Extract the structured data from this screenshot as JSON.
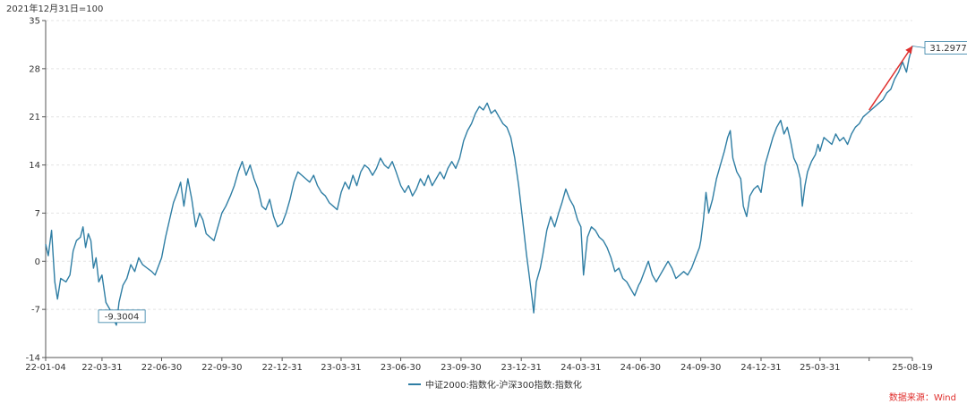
{
  "chart_data": {
    "type": "line",
    "unit_label": "2021年12月31日=100",
    "source": "数据来源：Wind",
    "legend": [
      "中证2000:指数化-沪深300指数:指数化"
    ],
    "series": [
      {
        "name": "中证2000:指数化-沪深300指数:指数化",
        "color": "#2f7ea4",
        "points": [
          [
            "22-01-04",
            2.5
          ],
          [
            "22-01-08",
            0.8
          ],
          [
            "22-01-13",
            4.5
          ],
          [
            "22-01-18",
            -3.0
          ],
          [
            "22-01-22",
            -5.5
          ],
          [
            "22-01-27",
            -2.5
          ],
          [
            "22-02-04",
            -3.0
          ],
          [
            "22-02-10",
            -2.0
          ],
          [
            "22-02-15",
            1.5
          ],
          [
            "22-02-20",
            3.0
          ],
          [
            "22-02-26",
            3.5
          ],
          [
            "22-03-02",
            5.0
          ],
          [
            "22-03-06",
            2.0
          ],
          [
            "22-03-10",
            4.0
          ],
          [
            "22-03-14",
            3.0
          ],
          [
            "22-03-18",
            -1.0
          ],
          [
            "22-03-22",
            0.5
          ],
          [
            "22-03-26",
            -3.0
          ],
          [
            "22-03-31",
            -2.0
          ],
          [
            "22-04-06",
            -6.0
          ],
          [
            "22-04-12",
            -7.0
          ],
          [
            "22-04-18",
            -8.5
          ],
          [
            "22-04-22",
            -9.3004
          ],
          [
            "22-04-26",
            -6.0
          ],
          [
            "22-05-02",
            -3.5
          ],
          [
            "22-05-08",
            -2.5
          ],
          [
            "22-05-14",
            -0.5
          ],
          [
            "22-05-20",
            -1.5
          ],
          [
            "22-05-26",
            0.5
          ],
          [
            "22-06-01",
            -0.5
          ],
          [
            "22-06-08",
            -1.0
          ],
          [
            "22-06-15",
            -1.5
          ],
          [
            "22-06-20",
            -2.0
          ],
          [
            "22-06-30",
            0.5
          ],
          [
            "22-07-06",
            3.5
          ],
          [
            "22-07-12",
            6.0
          ],
          [
            "22-07-18",
            8.5
          ],
          [
            "22-07-24",
            10.0
          ],
          [
            "22-07-29",
            11.5
          ],
          [
            "22-08-03",
            8.0
          ],
          [
            "22-08-09",
            12.0
          ],
          [
            "22-08-15",
            9.0
          ],
          [
            "22-08-21",
            5.0
          ],
          [
            "22-08-27",
            7.0
          ],
          [
            "22-09-01",
            6.0
          ],
          [
            "22-09-06",
            4.0
          ],
          [
            "22-09-12",
            3.5
          ],
          [
            "22-09-18",
            3.0
          ],
          [
            "22-09-24",
            5.0
          ],
          [
            "22-09-30",
            7.0
          ],
          [
            "22-10-06",
            8.0
          ],
          [
            "22-10-13",
            9.5
          ],
          [
            "22-10-19",
            11.0
          ],
          [
            "22-10-25",
            13.0
          ],
          [
            "22-10-31",
            14.5
          ],
          [
            "22-11-06",
            12.5
          ],
          [
            "22-11-12",
            14.0
          ],
          [
            "22-11-18",
            12.0
          ],
          [
            "22-11-24",
            10.5
          ],
          [
            "22-11-30",
            8.0
          ],
          [
            "22-12-06",
            7.5
          ],
          [
            "22-12-12",
            9.0
          ],
          [
            "22-12-18",
            6.5
          ],
          [
            "22-12-24",
            5.0
          ],
          [
            "22-12-31",
            5.5
          ],
          [
            "23-01-06",
            7.0
          ],
          [
            "23-01-12",
            9.0
          ],
          [
            "23-01-18",
            11.5
          ],
          [
            "23-01-24",
            13.0
          ],
          [
            "23-01-30",
            12.5
          ],
          [
            "23-02-05",
            12.0
          ],
          [
            "23-02-11",
            11.5
          ],
          [
            "23-02-17",
            12.5
          ],
          [
            "23-02-23",
            11.0
          ],
          [
            "23-03-01",
            10.0
          ],
          [
            "23-03-07",
            9.5
          ],
          [
            "23-03-13",
            8.5
          ],
          [
            "23-03-19",
            8.0
          ],
          [
            "23-03-25",
            7.5
          ],
          [
            "23-03-31",
            10.0
          ],
          [
            "23-04-06",
            11.5
          ],
          [
            "23-04-12",
            10.5
          ],
          [
            "23-04-18",
            12.5
          ],
          [
            "23-04-24",
            11.0
          ],
          [
            "23-04-30",
            13.0
          ],
          [
            "23-05-06",
            14.0
          ],
          [
            "23-05-12",
            13.5
          ],
          [
            "23-05-18",
            12.5
          ],
          [
            "23-05-24",
            13.5
          ],
          [
            "23-05-30",
            15.0
          ],
          [
            "23-06-05",
            14.0
          ],
          [
            "23-06-11",
            13.5
          ],
          [
            "23-06-17",
            14.5
          ],
          [
            "23-06-23",
            13.0
          ],
          [
            "23-06-30",
            11.0
          ],
          [
            "23-07-06",
            10.0
          ],
          [
            "23-07-12",
            11.0
          ],
          [
            "23-07-18",
            9.5
          ],
          [
            "23-07-24",
            10.5
          ],
          [
            "23-07-30",
            12.0
          ],
          [
            "23-08-05",
            11.0
          ],
          [
            "23-08-11",
            12.5
          ],
          [
            "23-08-17",
            11.0
          ],
          [
            "23-08-23",
            12.0
          ],
          [
            "23-08-29",
            13.0
          ],
          [
            "23-09-04",
            12.0
          ],
          [
            "23-09-10",
            13.5
          ],
          [
            "23-09-16",
            14.5
          ],
          [
            "23-09-22",
            13.5
          ],
          [
            "23-09-28",
            15.0
          ],
          [
            "23-10-04",
            17.5
          ],
          [
            "23-10-10",
            19.0
          ],
          [
            "23-10-16",
            20.0
          ],
          [
            "23-10-22",
            21.5
          ],
          [
            "23-10-28",
            22.5
          ],
          [
            "23-11-03",
            22.0
          ],
          [
            "23-11-09",
            23.0
          ],
          [
            "23-11-15",
            21.5
          ],
          [
            "23-11-21",
            22.0
          ],
          [
            "23-11-27",
            21.0
          ],
          [
            "23-12-03",
            20.0
          ],
          [
            "23-12-09",
            19.5
          ],
          [
            "23-12-15",
            18.0
          ],
          [
            "23-12-21",
            15.0
          ],
          [
            "23-12-27",
            11.0
          ],
          [
            "24-01-02",
            6.0
          ],
          [
            "24-01-08",
            1.0
          ],
          [
            "24-01-12",
            -2.0
          ],
          [
            "24-01-16",
            -5.0
          ],
          [
            "24-01-19",
            -7.5
          ],
          [
            "24-01-23",
            -3.0
          ],
          [
            "24-01-29",
            -1.0
          ],
          [
            "24-02-02",
            1.0
          ],
          [
            "24-02-08",
            4.5
          ],
          [
            "24-02-14",
            6.5
          ],
          [
            "24-02-20",
            5.0
          ],
          [
            "24-02-26",
            7.0
          ],
          [
            "24-03-02",
            8.5
          ],
          [
            "24-03-08",
            10.5
          ],
          [
            "24-03-14",
            9.0
          ],
          [
            "24-03-20",
            8.0
          ],
          [
            "24-03-26",
            6.0
          ],
          [
            "24-03-31",
            5.0
          ],
          [
            "24-04-04",
            -2.0
          ],
          [
            "24-04-10",
            3.5
          ],
          [
            "24-04-16",
            5.0
          ],
          [
            "24-04-22",
            4.5
          ],
          [
            "24-04-28",
            3.5
          ],
          [
            "24-05-04",
            3.0
          ],
          [
            "24-05-10",
            2.0
          ],
          [
            "24-05-16",
            0.5
          ],
          [
            "24-05-22",
            -1.5
          ],
          [
            "24-05-28",
            -1.0
          ],
          [
            "24-06-03",
            -2.5
          ],
          [
            "24-06-09",
            -3.0
          ],
          [
            "24-06-15",
            -4.0
          ],
          [
            "24-06-21",
            -5.0
          ],
          [
            "24-06-27",
            -3.5
          ],
          [
            "24-06-30",
            -3.0
          ],
          [
            "24-07-06",
            -1.5
          ],
          [
            "24-07-12",
            0.0
          ],
          [
            "24-07-18",
            -2.0
          ],
          [
            "24-07-24",
            -3.0
          ],
          [
            "24-07-30",
            -2.0
          ],
          [
            "24-08-05",
            -1.0
          ],
          [
            "24-08-11",
            0.0
          ],
          [
            "24-08-17",
            -1.0
          ],
          [
            "24-08-23",
            -2.5
          ],
          [
            "24-08-29",
            -2.0
          ],
          [
            "24-09-04",
            -1.5
          ],
          [
            "24-09-10",
            -2.0
          ],
          [
            "24-09-16",
            -1.0
          ],
          [
            "24-09-22",
            0.5
          ],
          [
            "24-09-28",
            2.0
          ],
          [
            "24-09-30",
            3.0
          ],
          [
            "24-10-04",
            6.0
          ],
          [
            "24-10-08",
            10.0
          ],
          [
            "24-10-12",
            7.0
          ],
          [
            "24-10-18",
            9.0
          ],
          [
            "24-10-24",
            12.0
          ],
          [
            "24-10-30",
            14.0
          ],
          [
            "24-11-05",
            16.0
          ],
          [
            "24-11-10",
            18.0
          ],
          [
            "24-11-14",
            19.0
          ],
          [
            "24-11-18",
            15.0
          ],
          [
            "24-11-24",
            13.0
          ],
          [
            "24-11-30",
            12.0
          ],
          [
            "24-12-04",
            8.0
          ],
          [
            "24-12-09",
            6.5
          ],
          [
            "24-12-14",
            9.5
          ],
          [
            "24-12-20",
            10.5
          ],
          [
            "24-12-26",
            11.0
          ],
          [
            "24-12-31",
            10.0
          ],
          [
            "25-01-06",
            14.0
          ],
          [
            "25-01-12",
            16.0
          ],
          [
            "25-01-18",
            18.0
          ],
          [
            "25-01-24",
            19.5
          ],
          [
            "25-01-30",
            20.5
          ],
          [
            "25-02-04",
            18.5
          ],
          [
            "25-02-09",
            19.5
          ],
          [
            "25-02-14",
            17.5
          ],
          [
            "25-02-19",
            15.0
          ],
          [
            "25-02-24",
            14.0
          ],
          [
            "25-03-01",
            12.0
          ],
          [
            "25-03-04",
            8.0
          ],
          [
            "25-03-08",
            11.0
          ],
          [
            "25-03-12",
            13.0
          ],
          [
            "25-03-18",
            14.5
          ],
          [
            "25-03-24",
            15.5
          ],
          [
            "25-03-28",
            17.0
          ],
          [
            "25-03-31",
            16.0
          ],
          [
            "25-04-06",
            18.0
          ],
          [
            "25-04-12",
            17.5
          ],
          [
            "25-04-18",
            17.0
          ],
          [
            "25-04-24",
            18.5
          ],
          [
            "25-04-30",
            17.5
          ],
          [
            "25-05-06",
            18.0
          ],
          [
            "25-05-12",
            17.0
          ],
          [
            "25-05-18",
            18.5
          ],
          [
            "25-05-24",
            19.5
          ],
          [
            "25-05-30",
            20.0
          ],
          [
            "25-06-05",
            21.0
          ],
          [
            "25-06-11",
            21.5
          ],
          [
            "25-06-17",
            22.0
          ],
          [
            "25-06-23",
            22.5
          ],
          [
            "25-06-29",
            23.0
          ],
          [
            "25-07-05",
            23.5
          ],
          [
            "25-07-11",
            24.5
          ],
          [
            "25-07-17",
            25.0
          ],
          [
            "25-07-23",
            26.5
          ],
          [
            "25-07-29",
            27.5
          ],
          [
            "25-08-04",
            29.0
          ],
          [
            "25-08-10",
            27.5
          ],
          [
            "25-08-14",
            29.5
          ],
          [
            "25-08-19",
            31.2977
          ]
        ]
      }
    ],
    "y_ticks": [
      35,
      28,
      21,
      14,
      7,
      0,
      -7,
      -14
    ],
    "ylim": [
      -14,
      35
    ],
    "xlim": [
      "22-01-04",
      "25-08-19"
    ],
    "x_ticks": [
      "22-01-04",
      "22-03-31",
      "22-06-30",
      "22-09-30",
      "22-12-31",
      "23-03-31",
      "23-06-30",
      "23-09-30",
      "23-12-31",
      "24-03-31",
      "24-06-30",
      "24-09-30",
      "24-12-31",
      "25-03-31",
      "25-08-19"
    ],
    "annotations": [
      {
        "label": "-9.3004",
        "x": "22-04-22",
        "y": -9.3004
      },
      {
        "label": "31.2977",
        "x": "25-08-19",
        "y": 31.2977
      }
    ],
    "trend_arrow": {
      "from": {
        "x": "25-06-14",
        "y": 22.0
      },
      "to": {
        "x": "25-08-19",
        "y": 31.2977
      },
      "color": "#e0302e"
    },
    "grid": "horizontal dashed",
    "legend_position": "bottom-center"
  }
}
